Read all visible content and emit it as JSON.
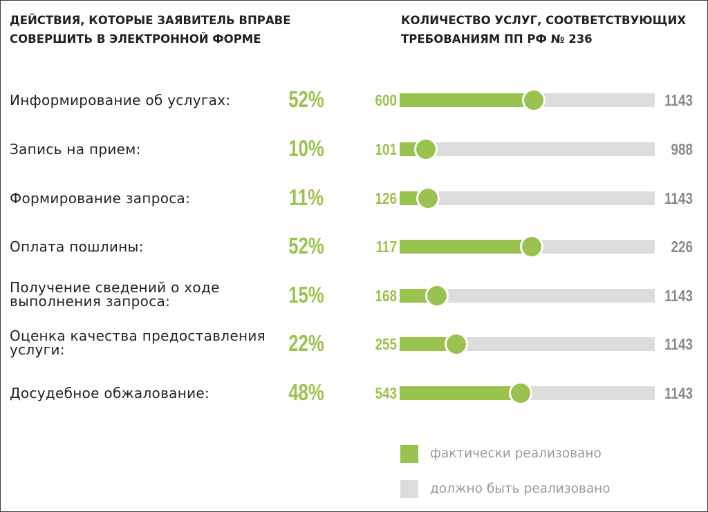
{
  "header": {
    "left_title": "ДЕЙСТВИЯ, КОТОРЫЕ ЗАЯВИТЕЛЬ ВПРАВЕ СОВЕРШИТЬ В ЭЛЕКТРОННОЙ ФОРМЕ",
    "right_title": "КОЛИЧЕСТВО УСЛУГ, СООТВЕТСТВУЮЩИХ ТРЕБОВАНИЯМ ПП РФ № 236"
  },
  "chart_data": {
    "type": "bar",
    "categories": [
      "Информирование об услугах:",
      "Запись на прием:",
      "Формирование запроса:",
      "Оплата пошлины:",
      "Получение сведений о ходе выполнения запроса:",
      "Оценка качества предоставления услуги:",
      "Досудебное обжалование:"
    ],
    "percent_labels": [
      "52%",
      "10%",
      "11%",
      "52%",
      "15%",
      "22%",
      "48%"
    ],
    "series": [
      {
        "name": "фактически реализовано",
        "values": [
          600,
          101,
          126,
          117,
          168,
          255,
          543
        ],
        "color": "#9ac24f"
      },
      {
        "name": "должно быть реализовано",
        "values": [
          1143,
          988,
          1143,
          226,
          1143,
          1143,
          1143
        ],
        "color": "#dcdcdc"
      }
    ],
    "legend_position": "bottom-right",
    "colors": {
      "actual": "#9ac24f",
      "target": "#dcdcdc",
      "target_text": "#8a8a8a"
    }
  }
}
